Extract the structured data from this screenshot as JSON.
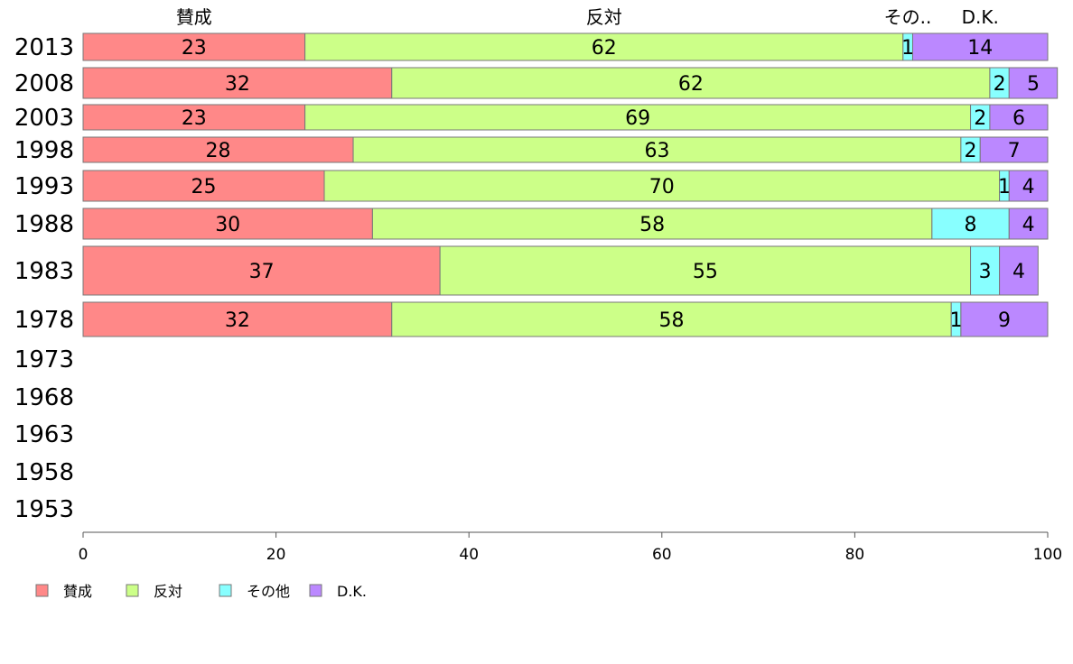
{
  "chart_data": {
    "type": "bar",
    "orientation": "horizontal",
    "stacked": true,
    "categories": [
      "2013",
      "2008",
      "2003",
      "1998",
      "1993",
      "1988",
      "1983",
      "1978",
      "1973",
      "1968",
      "1963",
      "1958",
      "1953"
    ],
    "series": [
      {
        "name": "賛成",
        "header": "賛成",
        "color": "#ff8888",
        "values": [
          23,
          32,
          23,
          28,
          25,
          30,
          37,
          32,
          null,
          null,
          null,
          null,
          null
        ]
      },
      {
        "name": "反対",
        "header": "反対",
        "color": "#ccff88",
        "values": [
          62,
          62,
          69,
          63,
          70,
          58,
          55,
          58,
          null,
          null,
          null,
          null,
          null
        ]
      },
      {
        "name": "その他",
        "header": "その..",
        "color": "#88ffff",
        "values": [
          1,
          2,
          2,
          2,
          1,
          8,
          3,
          1,
          null,
          null,
          null,
          null,
          null
        ]
      },
      {
        "name": "D.K.",
        "header": "D.K.",
        "color": "#bb88ff",
        "values": [
          14,
          5,
          6,
          7,
          4,
          4,
          4,
          9,
          null,
          null,
          null,
          null,
          null
        ]
      }
    ],
    "xlim": [
      0,
      100
    ],
    "xticks": [
      "0",
      "20",
      "40",
      "60",
      "80",
      "100"
    ],
    "xlabel": "",
    "ylabel": "",
    "title": "",
    "grid": false,
    "legend": "bottom-left"
  }
}
